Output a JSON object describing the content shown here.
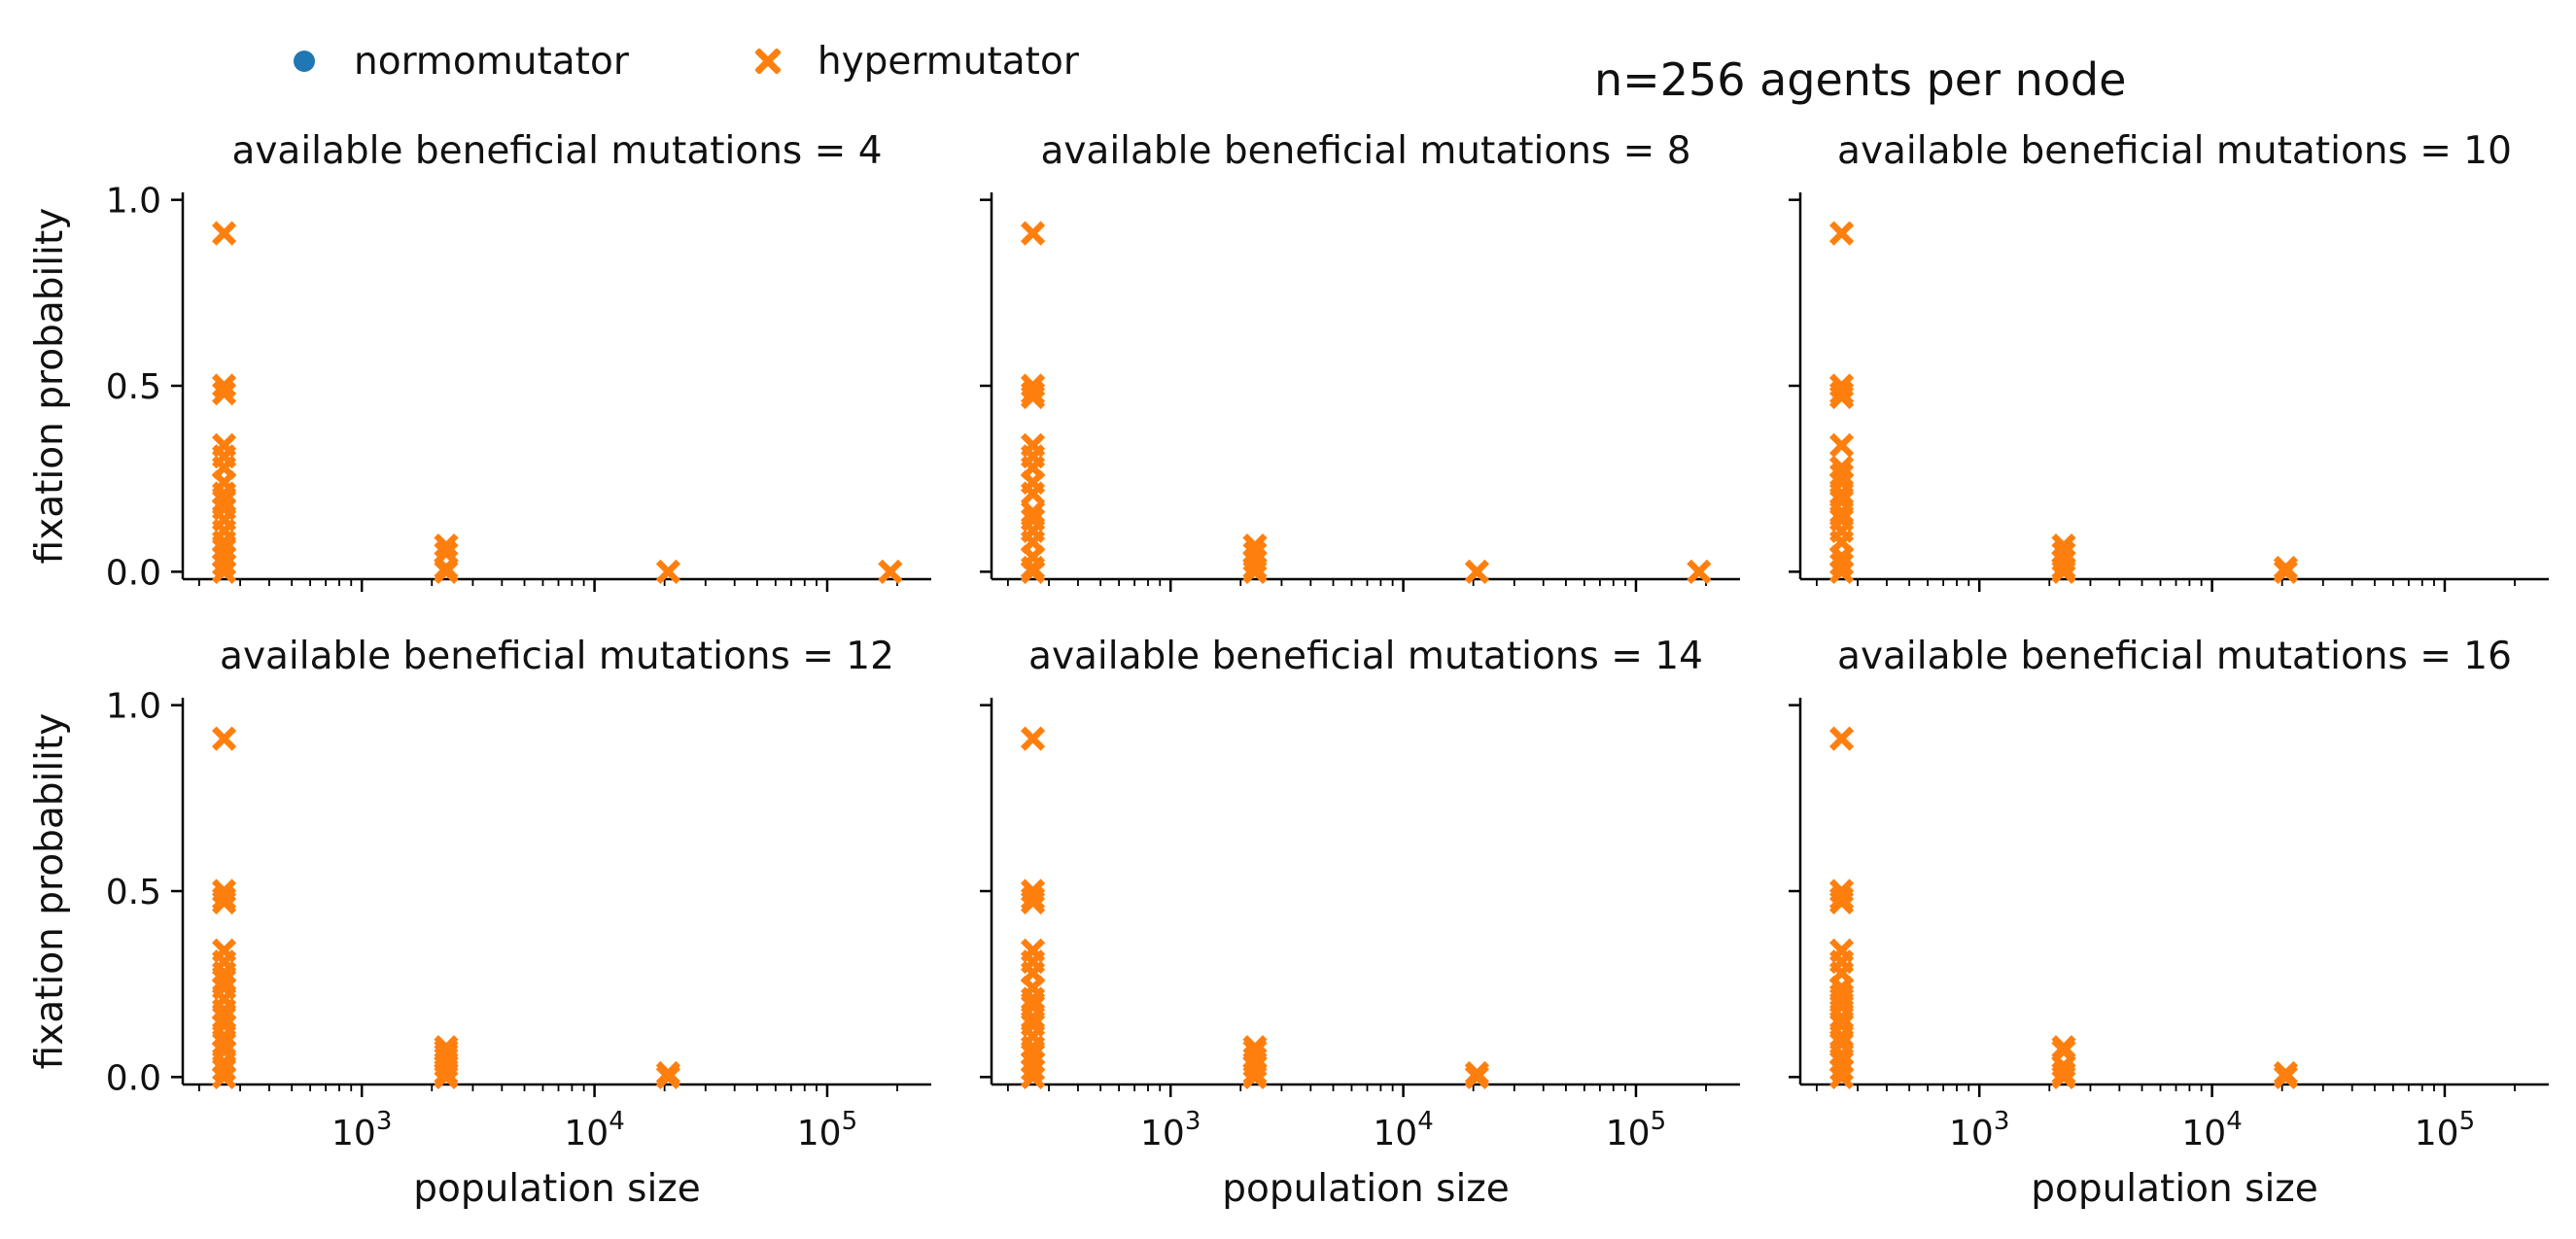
{
  "suptitle": "n=256 agents per node",
  "legend": [
    {
      "label": "normomutator",
      "color": "#1f77b4",
      "marker": "circle"
    },
    {
      "label": "hypermutator",
      "color": "#ff7f0e",
      "marker": "x"
    }
  ],
  "chart_data": {
    "type": "scatter",
    "xscale": "log",
    "xlabel": "population size",
    "ylabel": "fixation probability",
    "xticks": [
      {
        "v": 1000,
        "base": "10",
        "exp": "3"
      },
      {
        "v": 10000,
        "base": "10",
        "exp": "4"
      },
      {
        "v": 100000,
        "base": "10",
        "exp": "5"
      }
    ],
    "yticks": [
      "0.0",
      "0.5",
      "1.0"
    ],
    "xlim": [
      170,
      280000
    ],
    "ylim": [
      -0.02,
      1.02
    ],
    "grid": false,
    "legend_position": "top-left, outside",
    "panels": [
      {
        "title": "available beneficial mutations = 4",
        "series": [
          {
            "name": "hypermutator",
            "points": [
              [
                256,
                0.91
              ],
              [
                256,
                0.5
              ],
              [
                256,
                0.48
              ],
              [
                256,
                0.34
              ],
              [
                256,
                0.31
              ],
              [
                256,
                0.28
              ],
              [
                256,
                0.24
              ],
              [
                256,
                0.21
              ],
              [
                256,
                0.19
              ],
              [
                256,
                0.17
              ],
              [
                256,
                0.14
              ],
              [
                256,
                0.11
              ],
              [
                256,
                0.08
              ],
              [
                256,
                0.06
              ],
              [
                256,
                0.04
              ],
              [
                256,
                0.02
              ],
              [
                256,
                0.0
              ],
              [
                2304,
                0.07
              ],
              [
                2304,
                0.05
              ],
              [
                2304,
                0.01
              ],
              [
                2304,
                0.0
              ],
              [
                20736,
                0.0
              ],
              [
                186624,
                0.0
              ]
            ]
          }
        ]
      },
      {
        "title": "available beneficial mutations = 8",
        "series": [
          {
            "name": "hypermutator",
            "points": [
              [
                256,
                0.91
              ],
              [
                256,
                0.5
              ],
              [
                256,
                0.48
              ],
              [
                256,
                0.47
              ],
              [
                256,
                0.34
              ],
              [
                256,
                0.31
              ],
              [
                256,
                0.28
              ],
              [
                256,
                0.24
              ],
              [
                256,
                0.21
              ],
              [
                256,
                0.16
              ],
              [
                256,
                0.14
              ],
              [
                256,
                0.11
              ],
              [
                256,
                0.08
              ],
              [
                256,
                0.04
              ],
              [
                256,
                0.01
              ],
              [
                256,
                0.0
              ],
              [
                2304,
                0.07
              ],
              [
                2304,
                0.05
              ],
              [
                2304,
                0.03
              ],
              [
                2304,
                0.01
              ],
              [
                2304,
                0.0
              ],
              [
                20736,
                0.0
              ],
              [
                186624,
                0.0
              ]
            ]
          }
        ]
      },
      {
        "title": "available beneficial mutations = 10",
        "series": [
          {
            "name": "hypermutator",
            "points": [
              [
                256,
                0.91
              ],
              [
                256,
                0.5
              ],
              [
                256,
                0.48
              ],
              [
                256,
                0.47
              ],
              [
                256,
                0.34
              ],
              [
                256,
                0.28
              ],
              [
                256,
                0.26
              ],
              [
                256,
                0.24
              ],
              [
                256,
                0.21
              ],
              [
                256,
                0.19
              ],
              [
                256,
                0.16
              ],
              [
                256,
                0.14
              ],
              [
                256,
                0.11
              ],
              [
                256,
                0.08
              ],
              [
                256,
                0.04
              ],
              [
                256,
                0.02
              ],
              [
                256,
                0.0
              ],
              [
                2304,
                0.07
              ],
              [
                2304,
                0.05
              ],
              [
                2304,
                0.03
              ],
              [
                2304,
                0.01
              ],
              [
                2304,
                0.0
              ],
              [
                20736,
                0.0
              ],
              [
                20736,
                0.01
              ]
            ]
          }
        ]
      },
      {
        "title": "available beneficial mutations = 12",
        "series": [
          {
            "name": "hypermutator",
            "points": [
              [
                256,
                0.91
              ],
              [
                256,
                0.5
              ],
              [
                256,
                0.48
              ],
              [
                256,
                0.47
              ],
              [
                256,
                0.34
              ],
              [
                256,
                0.31
              ],
              [
                256,
                0.28
              ],
              [
                256,
                0.26
              ],
              [
                256,
                0.24
              ],
              [
                256,
                0.21
              ],
              [
                256,
                0.18
              ],
              [
                256,
                0.16
              ],
              [
                256,
                0.14
              ],
              [
                256,
                0.11
              ],
              [
                256,
                0.09
              ],
              [
                256,
                0.07
              ],
              [
                256,
                0.04
              ],
              [
                256,
                0.02
              ],
              [
                256,
                0.0
              ],
              [
                2304,
                0.08
              ],
              [
                2304,
                0.07
              ],
              [
                2304,
                0.06
              ],
              [
                2304,
                0.05
              ],
              [
                2304,
                0.03
              ],
              [
                2304,
                0.01
              ],
              [
                2304,
                0.0
              ],
              [
                20736,
                0.0
              ],
              [
                20736,
                0.01
              ]
            ]
          }
        ]
      },
      {
        "title": "available beneficial mutations = 14",
        "series": [
          {
            "name": "hypermutator",
            "points": [
              [
                256,
                0.91
              ],
              [
                256,
                0.5
              ],
              [
                256,
                0.48
              ],
              [
                256,
                0.47
              ],
              [
                256,
                0.34
              ],
              [
                256,
                0.31
              ],
              [
                256,
                0.28
              ],
              [
                256,
                0.24
              ],
              [
                256,
                0.21
              ],
              [
                256,
                0.19
              ],
              [
                256,
                0.16
              ],
              [
                256,
                0.14
              ],
              [
                256,
                0.11
              ],
              [
                256,
                0.08
              ],
              [
                256,
                0.06
              ],
              [
                256,
                0.04
              ],
              [
                256,
                0.02
              ],
              [
                256,
                0.0
              ],
              [
                2304,
                0.08
              ],
              [
                2304,
                0.07
              ],
              [
                2304,
                0.05
              ],
              [
                2304,
                0.03
              ],
              [
                2304,
                0.01
              ],
              [
                2304,
                0.0
              ],
              [
                20736,
                0.0
              ],
              [
                20736,
                0.01
              ]
            ]
          }
        ]
      },
      {
        "title": "available beneficial mutations = 16",
        "series": [
          {
            "name": "hypermutator",
            "points": [
              [
                256,
                0.91
              ],
              [
                256,
                0.5
              ],
              [
                256,
                0.48
              ],
              [
                256,
                0.47
              ],
              [
                256,
                0.34
              ],
              [
                256,
                0.31
              ],
              [
                256,
                0.28
              ],
              [
                256,
                0.24
              ],
              [
                256,
                0.22
              ],
              [
                256,
                0.21
              ],
              [
                256,
                0.19
              ],
              [
                256,
                0.16
              ],
              [
                256,
                0.14
              ],
              [
                256,
                0.11
              ],
              [
                256,
                0.09
              ],
              [
                256,
                0.06
              ],
              [
                256,
                0.04
              ],
              [
                256,
                0.02
              ],
              [
                256,
                0.0
              ],
              [
                2304,
                0.08
              ],
              [
                2304,
                0.07
              ],
              [
                2304,
                0.03
              ],
              [
                2304,
                0.01
              ],
              [
                2304,
                0.0
              ],
              [
                20736,
                0.0
              ],
              [
                20736,
                0.01
              ]
            ]
          }
        ]
      }
    ]
  }
}
